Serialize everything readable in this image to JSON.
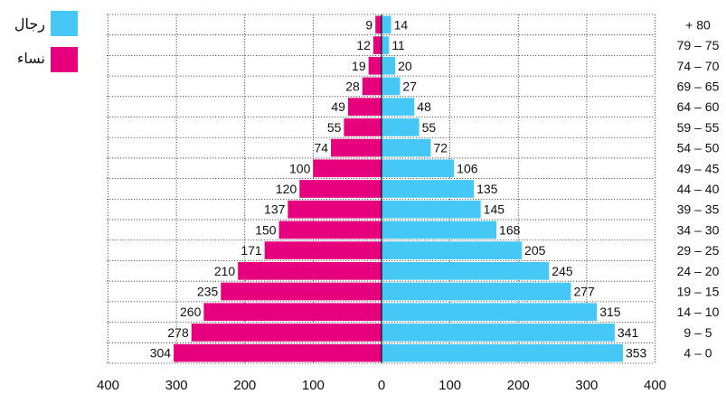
{
  "chart_data": {
    "type": "bar",
    "categories": [
      "+ 80",
      "79 – 75",
      "74 – 70",
      "69 – 65",
      "64 – 60",
      "59 – 55",
      "54 – 50",
      "49 – 45",
      "44 – 40",
      "39 – 35",
      "34 – 30",
      "29 – 25",
      "24 – 20",
      "19 – 15",
      "14 – 10",
      "9 – 5",
      "4 – 0"
    ],
    "series": [
      {
        "name": "نساء",
        "color": "#e6007e",
        "values": [
          9,
          12,
          19,
          28,
          49,
          55,
          74,
          100,
          120,
          137,
          150,
          171,
          210,
          235,
          260,
          278,
          304
        ]
      },
      {
        "name": "رجال",
        "color": "#45c8f5",
        "values": [
          14,
          11,
          20,
          27,
          48,
          55,
          72,
          106,
          135,
          145,
          168,
          205,
          245,
          277,
          315,
          341,
          353
        ]
      }
    ],
    "x_ticks": [
      "400",
      "300",
      "200",
      "100",
      "0",
      "100",
      "200",
      "300",
      "400"
    ],
    "xlim": [
      -400,
      400
    ],
    "grid": true,
    "legend_position": "top-left"
  }
}
